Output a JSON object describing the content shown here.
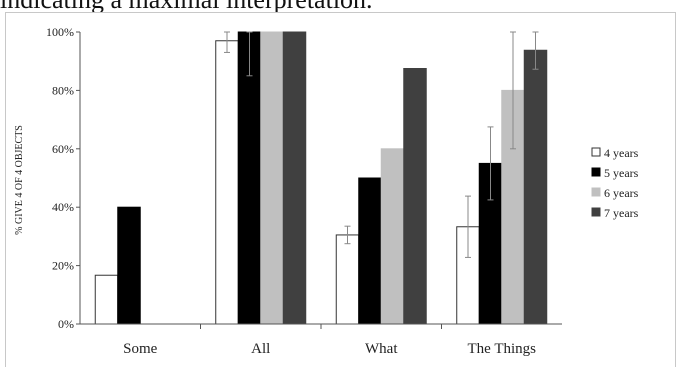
{
  "caption": "indicating a maximal interpretation.",
  "chart_data": {
    "type": "bar",
    "title": "",
    "xlabel": "",
    "ylabel": "% GIVE 4 OF 4 OBJECTS",
    "ylim": [
      0,
      100
    ],
    "yticks": [
      "0%",
      "20%",
      "40%",
      "60%",
      "80%",
      "100%"
    ],
    "categories": [
      "Some",
      "All",
      "What",
      "The Things"
    ],
    "series": [
      {
        "name": "4 years",
        "color": "#ffffff",
        "values": [
          16.7,
          97,
          30.5,
          33.3
        ],
        "errors": [
          null,
          4,
          3,
          10.5
        ]
      },
      {
        "name": "5 years",
        "color": "#000000",
        "values": [
          40,
          100,
          50,
          55
        ],
        "errors": [
          null,
          15,
          null,
          12.5
        ]
      },
      {
        "name": "6 years",
        "color": "#c0c0c0",
        "values": [
          0,
          100,
          60,
          80
        ],
        "errors": [
          null,
          null,
          null,
          20
        ]
      },
      {
        "name": "7 years",
        "color": "#404040",
        "values": [
          0,
          100,
          87.5,
          93.75
        ],
        "errors": [
          null,
          null,
          null,
          6.5
        ]
      }
    ],
    "grid": false,
    "legend": "right"
  }
}
